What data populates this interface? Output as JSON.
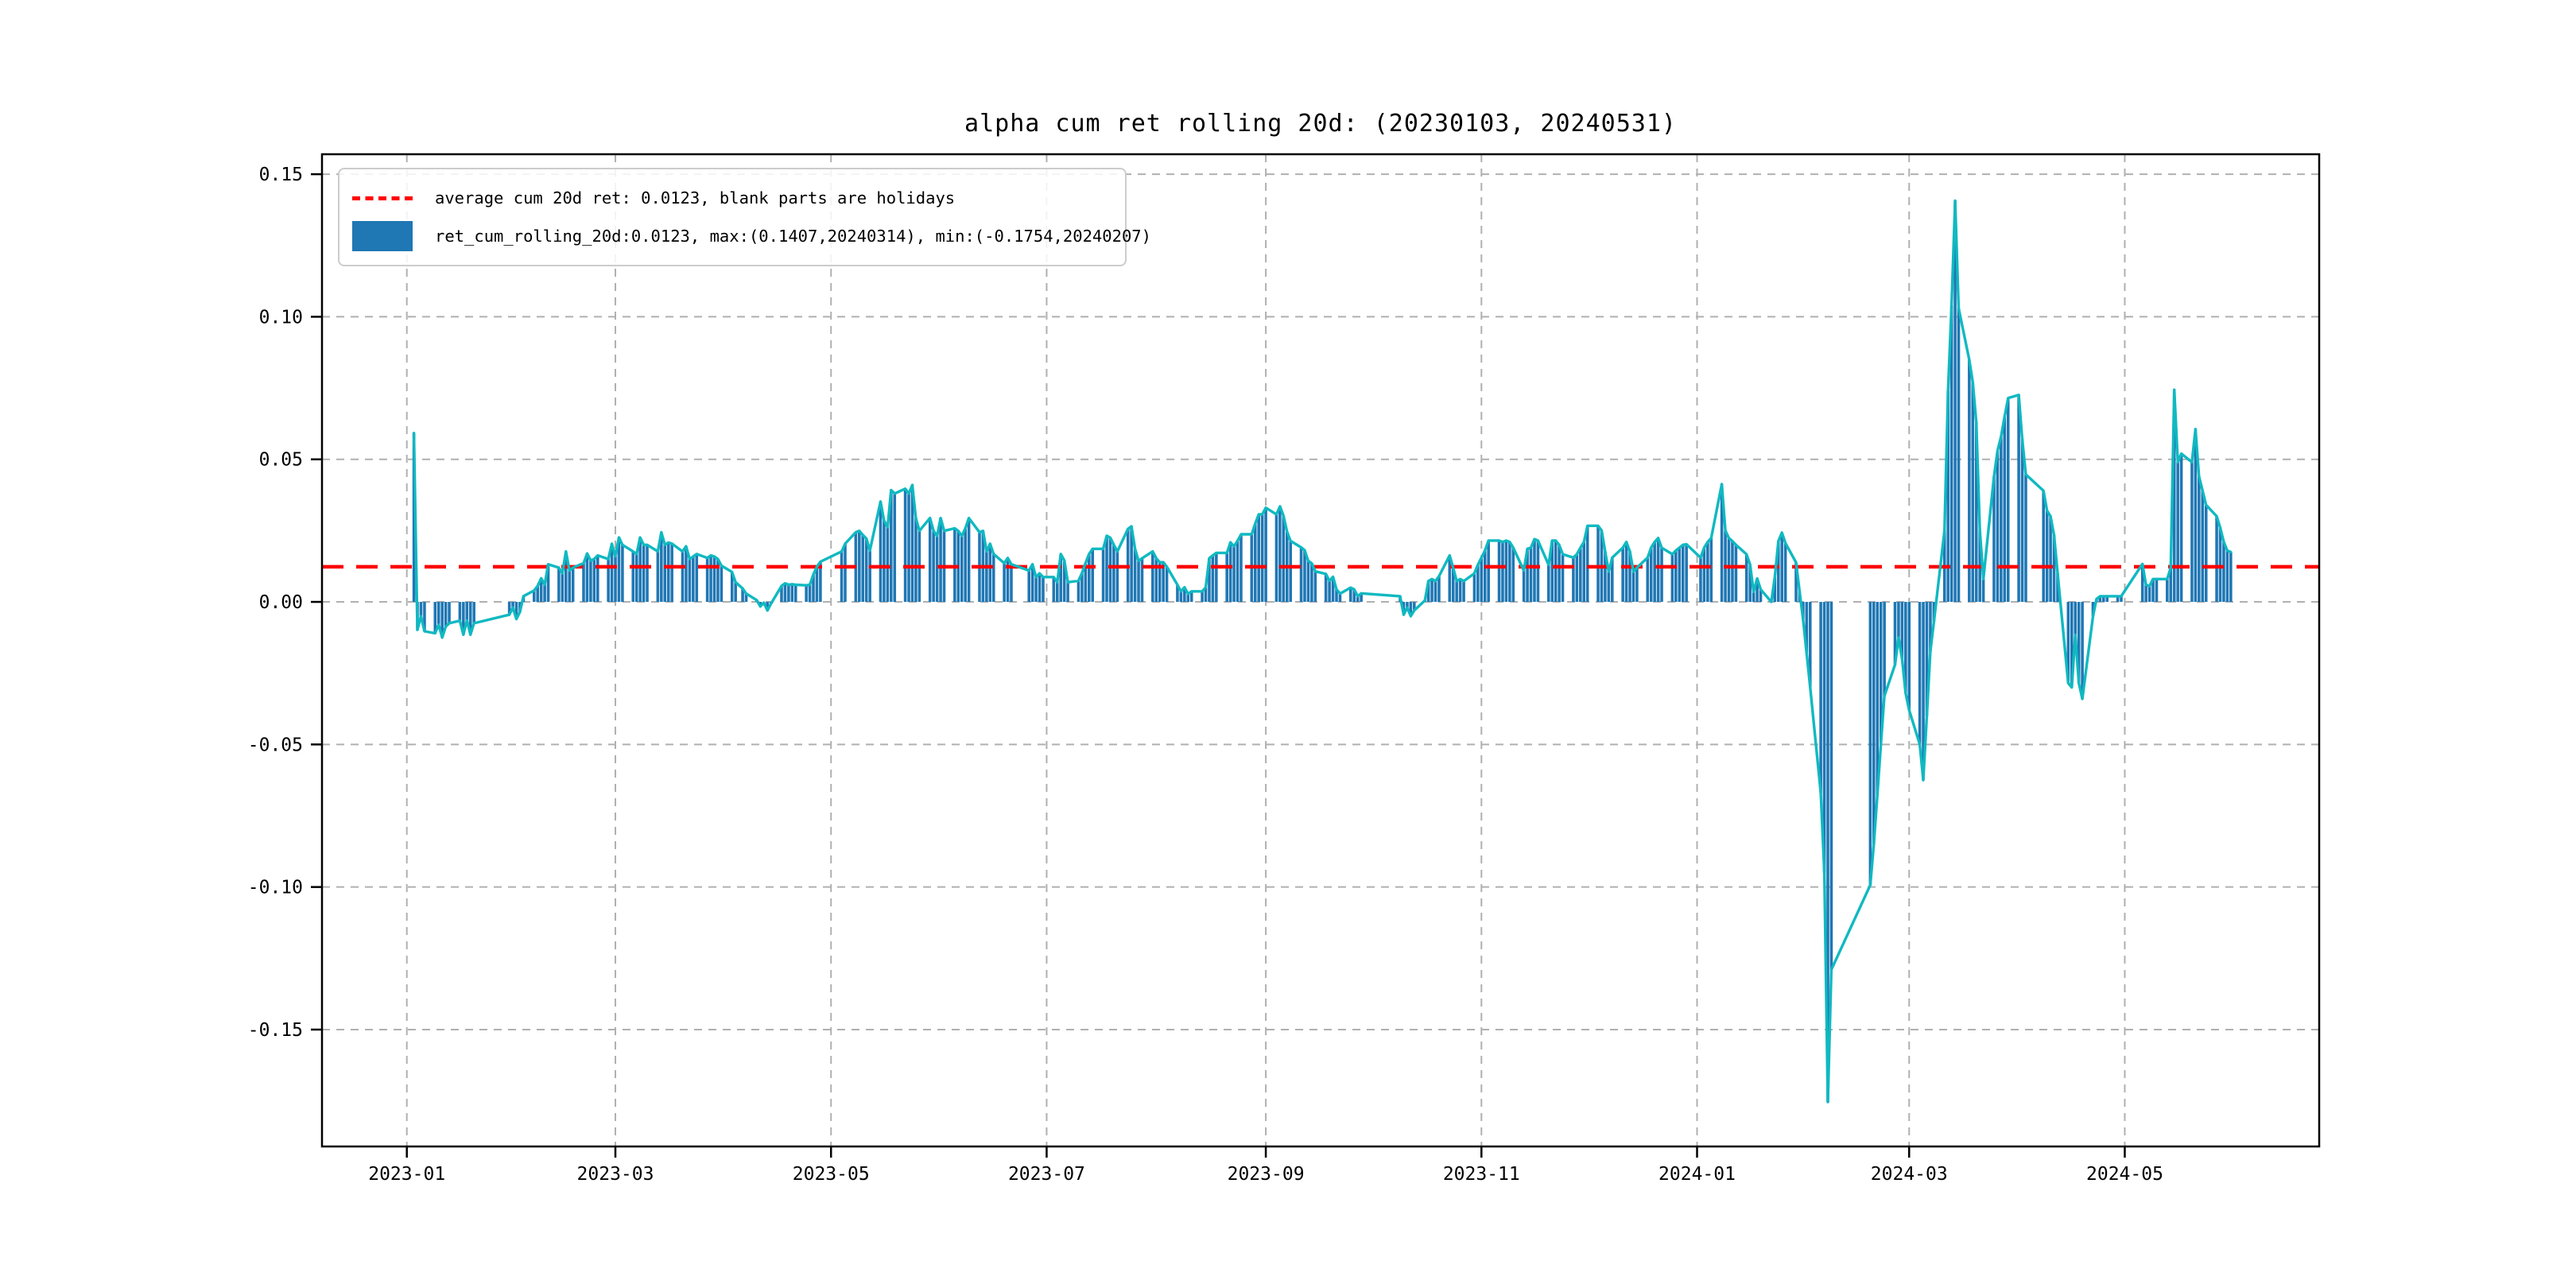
{
  "title": "alpha cum ret rolling 20d: (20230103, 20240531)",
  "legend": {
    "avg_label": "average cum 20d ret: 0.0123, blank parts are holidays",
    "series_label": "ret_cum_rolling_20d:0.0123, max:(0.1407,20240314), min:(-0.1754,20240207)"
  },
  "colors": {
    "bar": "#1f77b4",
    "line": "#10b9c1",
    "average": "#ff0000",
    "grid": "#b0b0b0",
    "spine": "#000000",
    "background": "#ffffff"
  },
  "chart_data": {
    "type": "bar",
    "title": "alpha cum ret rolling 20d: (20230103, 20240531)",
    "series_name": "ret_cum_rolling_20d",
    "average_line": 0.0123,
    "max_point": {
      "value": 0.1407,
      "date": "20240314"
    },
    "min_point": {
      "value": -0.1754,
      "date": "20240207"
    },
    "grid": true,
    "legend_position": "upper left",
    "ylim": [
      -0.191,
      0.157
    ],
    "xlim": [
      "2022-12-08",
      "2024-06-25"
    ],
    "y_ticks": [
      0.15,
      0.1,
      0.05,
      0.0,
      -0.05,
      -0.1,
      -0.15
    ],
    "x_ticks": [
      {
        "label": "2023-01",
        "date": "2023-01-01"
      },
      {
        "label": "2023-03",
        "date": "2023-03-01"
      },
      {
        "label": "2023-05",
        "date": "2023-05-01"
      },
      {
        "label": "2023-07",
        "date": "2023-07-01"
      },
      {
        "label": "2023-09",
        "date": "2023-09-01"
      },
      {
        "label": "2023-11",
        "date": "2023-11-01"
      },
      {
        "label": "2024-01",
        "date": "2024-01-01"
      },
      {
        "label": "2024-03",
        "date": "2024-03-01"
      },
      {
        "label": "2024-05",
        "date": "2024-05-01"
      }
    ],
    "points": [
      [
        "2023-01-03",
        0.0592
      ],
      [
        "2023-01-04",
        -0.0098
      ],
      [
        "2023-01-05",
        -0.005
      ],
      [
        "2023-01-06",
        -0.0103
      ],
      [
        "2023-01-09",
        -0.011
      ],
      [
        "2023-01-10",
        -0.008
      ],
      [
        "2023-01-11",
        -0.0125
      ],
      [
        "2023-01-12",
        -0.0087
      ],
      [
        "2023-01-13",
        -0.0075
      ],
      [
        "2023-01-16",
        -0.0066
      ],
      [
        "2023-01-17",
        -0.0115
      ],
      [
        "2023-01-18",
        -0.0065
      ],
      [
        "2023-01-19",
        -0.0115
      ],
      [
        "2023-01-20",
        -0.0075
      ],
      [
        "2023-01-30",
        -0.0045
      ],
      [
        "2023-01-31",
        -0.002
      ],
      [
        "2023-02-01",
        -0.006
      ],
      [
        "2023-02-02",
        -0.0035
      ],
      [
        "2023-02-03",
        0.002
      ],
      [
        "2023-02-06",
        0.004
      ],
      [
        "2023-02-07",
        0.0056
      ],
      [
        "2023-02-08",
        0.0083
      ],
      [
        "2023-02-09",
        0.006
      ],
      [
        "2023-02-10",
        0.0132
      ],
      [
        "2023-02-13",
        0.012
      ],
      [
        "2023-02-14",
        0.01
      ],
      [
        "2023-02-15",
        0.0177
      ],
      [
        "2023-02-16",
        0.011
      ],
      [
        "2023-02-17",
        0.012
      ],
      [
        "2023-02-20",
        0.0136
      ],
      [
        "2023-02-21",
        0.017
      ],
      [
        "2023-02-22",
        0.0145
      ],
      [
        "2023-02-23",
        0.015
      ],
      [
        "2023-02-24",
        0.0163
      ],
      [
        "2023-02-27",
        0.015
      ],
      [
        "2023-02-28",
        0.0204
      ],
      [
        "2023-03-01",
        0.016
      ],
      [
        "2023-03-02",
        0.0226
      ],
      [
        "2023-03-03",
        0.02
      ],
      [
        "2023-03-06",
        0.0177
      ],
      [
        "2023-03-07",
        0.0168
      ],
      [
        "2023-03-08",
        0.0226
      ],
      [
        "2023-03-09",
        0.02
      ],
      [
        "2023-03-10",
        0.02
      ],
      [
        "2023-03-13",
        0.0177
      ],
      [
        "2023-03-14",
        0.0244
      ],
      [
        "2023-03-15",
        0.02
      ],
      [
        "2023-03-16",
        0.0208
      ],
      [
        "2023-03-17",
        0.0204
      ],
      [
        "2023-03-20",
        0.0177
      ],
      [
        "2023-03-21",
        0.0195
      ],
      [
        "2023-03-22",
        0.015
      ],
      [
        "2023-03-23",
        0.0159
      ],
      [
        "2023-03-24",
        0.0168
      ],
      [
        "2023-03-27",
        0.0154
      ],
      [
        "2023-03-28",
        0.0163
      ],
      [
        "2023-03-29",
        0.0159
      ],
      [
        "2023-03-30",
        0.015
      ],
      [
        "2023-03-31",
        0.0127
      ],
      [
        "2023-04-03",
        0.0105
      ],
      [
        "2023-04-04",
        0.0069
      ],
      [
        "2023-04-06",
        0.0047
      ],
      [
        "2023-04-07",
        0.0029
      ],
      [
        "2023-04-10",
        0.0006
      ],
      [
        "2023-04-11",
        -0.0016
      ],
      [
        "2023-04-12",
        -0.0003
      ],
      [
        "2023-04-13",
        -0.003
      ],
      [
        "2023-04-14",
        -0.0007
      ],
      [
        "2023-04-17",
        0.0056
      ],
      [
        "2023-04-18",
        0.0065
      ],
      [
        "2023-04-19",
        0.006
      ],
      [
        "2023-04-20",
        0.0062
      ],
      [
        "2023-04-21",
        0.006
      ],
      [
        "2023-04-24",
        0.0058
      ],
      [
        "2023-04-25",
        0.006
      ],
      [
        "2023-04-26",
        0.0096
      ],
      [
        "2023-04-27",
        0.0123
      ],
      [
        "2023-04-28",
        0.0141
      ],
      [
        "2023-05-04",
        0.0177
      ],
      [
        "2023-05-05",
        0.0204
      ],
      [
        "2023-05-08",
        0.0244
      ],
      [
        "2023-05-09",
        0.0249
      ],
      [
        "2023-05-10",
        0.0235
      ],
      [
        "2023-05-11",
        0.0222
      ],
      [
        "2023-05-12",
        0.018
      ],
      [
        "2023-05-15",
        0.0352
      ],
      [
        "2023-05-16",
        0.0285
      ],
      [
        "2023-05-17",
        0.0262
      ],
      [
        "2023-05-18",
        0.0392
      ],
      [
        "2023-05-19",
        0.038
      ],
      [
        "2023-05-22",
        0.0397
      ],
      [
        "2023-05-23",
        0.038
      ],
      [
        "2023-05-24",
        0.041
      ],
      [
        "2023-05-25",
        0.0294
      ],
      [
        "2023-05-26",
        0.0249
      ],
      [
        "2023-05-29",
        0.0294
      ],
      [
        "2023-05-30",
        0.0249
      ],
      [
        "2023-05-31",
        0.0231
      ],
      [
        "2023-06-01",
        0.0294
      ],
      [
        "2023-06-02",
        0.0249
      ],
      [
        "2023-06-05",
        0.0258
      ],
      [
        "2023-06-06",
        0.0249
      ],
      [
        "2023-06-07",
        0.0231
      ],
      [
        "2023-06-08",
        0.0258
      ],
      [
        "2023-06-09",
        0.0294
      ],
      [
        "2023-06-12",
        0.0244
      ],
      [
        "2023-06-13",
        0.0249
      ],
      [
        "2023-06-14",
        0.0177
      ],
      [
        "2023-06-15",
        0.0204
      ],
      [
        "2023-06-16",
        0.0168
      ],
      [
        "2023-06-19",
        0.0136
      ],
      [
        "2023-06-20",
        0.0154
      ],
      [
        "2023-06-21",
        0.0132
      ],
      [
        "2023-06-26",
        0.011
      ],
      [
        "2023-06-27",
        0.0132
      ],
      [
        "2023-06-28",
        0.0087
      ],
      [
        "2023-06-29",
        0.01
      ],
      [
        "2023-06-30",
        0.0087
      ],
      [
        "2023-07-03",
        0.0087
      ],
      [
        "2023-07-04",
        0.0069
      ],
      [
        "2023-07-05",
        0.0168
      ],
      [
        "2023-07-06",
        0.0145
      ],
      [
        "2023-07-07",
        0.0069
      ],
      [
        "2023-07-10",
        0.0074
      ],
      [
        "2023-07-11",
        0.0101
      ],
      [
        "2023-07-12",
        0.0136
      ],
      [
        "2023-07-13",
        0.0168
      ],
      [
        "2023-07-14",
        0.0186
      ],
      [
        "2023-07-17",
        0.0186
      ],
      [
        "2023-07-18",
        0.0232
      ],
      [
        "2023-07-19",
        0.0225
      ],
      [
        "2023-07-20",
        0.02
      ],
      [
        "2023-07-21",
        0.0177
      ],
      [
        "2023-07-24",
        0.0256
      ],
      [
        "2023-07-25",
        0.0265
      ],
      [
        "2023-07-26",
        0.0186
      ],
      [
        "2023-07-27",
        0.0144
      ],
      [
        "2023-07-28",
        0.0153
      ],
      [
        "2023-07-31",
        0.0177
      ],
      [
        "2023-08-01",
        0.0153
      ],
      [
        "2023-08-02",
        0.0139
      ],
      [
        "2023-08-03",
        0.0139
      ],
      [
        "2023-08-04",
        0.0123
      ],
      [
        "2023-08-07",
        0.006
      ],
      [
        "2023-08-08",
        0.0037
      ],
      [
        "2023-08-09",
        0.0051
      ],
      [
        "2023-08-10",
        0.0028
      ],
      [
        "2023-08-11",
        0.0037
      ],
      [
        "2023-08-14",
        0.0037
      ],
      [
        "2023-08-15",
        0.0051
      ],
      [
        "2023-08-16",
        0.0153
      ],
      [
        "2023-08-17",
        0.0163
      ],
      [
        "2023-08-18",
        0.0172
      ],
      [
        "2023-08-21",
        0.0172
      ],
      [
        "2023-08-22",
        0.0209
      ],
      [
        "2023-08-23",
        0.0195
      ],
      [
        "2023-08-24",
        0.0214
      ],
      [
        "2023-08-25",
        0.0237
      ],
      [
        "2023-08-28",
        0.0237
      ],
      [
        "2023-08-29",
        0.0274
      ],
      [
        "2023-08-30",
        0.0307
      ],
      [
        "2023-08-31",
        0.0307
      ],
      [
        "2023-09-01",
        0.033
      ],
      [
        "2023-09-04",
        0.0307
      ],
      [
        "2023-09-05",
        0.0335
      ],
      [
        "2023-09-06",
        0.0302
      ],
      [
        "2023-09-07",
        0.0246
      ],
      [
        "2023-09-08",
        0.0214
      ],
      [
        "2023-09-11",
        0.0191
      ],
      [
        "2023-09-12",
        0.0181
      ],
      [
        "2023-09-13",
        0.0144
      ],
      [
        "2023-09-14",
        0.0135
      ],
      [
        "2023-09-15",
        0.0107
      ],
      [
        "2023-09-18",
        0.0098
      ],
      [
        "2023-09-19",
        0.0074
      ],
      [
        "2023-09-20",
        0.0088
      ],
      [
        "2023-09-21",
        0.0044
      ],
      [
        "2023-09-22",
        0.0029
      ],
      [
        "2023-09-25",
        0.005
      ],
      [
        "2023-09-26",
        0.0044
      ],
      [
        "2023-09-27",
        0.002
      ],
      [
        "2023-09-28",
        0.003
      ],
      [
        "2023-10-09",
        0.002
      ],
      [
        "2023-10-10",
        -0.0045
      ],
      [
        "2023-10-11",
        -0.002
      ],
      [
        "2023-10-12",
        -0.005
      ],
      [
        "2023-10-13",
        -0.003
      ],
      [
        "2023-10-16",
        0.0005
      ],
      [
        "2023-10-17",
        0.0073
      ],
      [
        "2023-10-18",
        0.008
      ],
      [
        "2023-10-19",
        0.0073
      ],
      [
        "2023-10-20",
        0.009
      ],
      [
        "2023-10-23",
        0.0163
      ],
      [
        "2023-10-24",
        0.012
      ],
      [
        "2023-10-25",
        0.0073
      ],
      [
        "2023-10-26",
        0.008
      ],
      [
        "2023-10-27",
        0.0073
      ],
      [
        "2023-10-30",
        0.01
      ],
      [
        "2023-10-31",
        0.013
      ],
      [
        "2023-11-01",
        0.0155
      ],
      [
        "2023-11-02",
        0.018
      ],
      [
        "2023-11-03",
        0.0215
      ],
      [
        "2023-11-06",
        0.0215
      ],
      [
        "2023-11-07",
        0.021
      ],
      [
        "2023-11-08",
        0.0215
      ],
      [
        "2023-11-09",
        0.021
      ],
      [
        "2023-11-10",
        0.019
      ],
      [
        "2023-11-13",
        0.011
      ],
      [
        "2023-11-14",
        0.0186
      ],
      [
        "2023-11-15",
        0.019
      ],
      [
        "2023-11-16",
        0.022
      ],
      [
        "2023-11-17",
        0.0215
      ],
      [
        "2023-11-20",
        0.013
      ],
      [
        "2023-11-21",
        0.0215
      ],
      [
        "2023-11-22",
        0.0215
      ],
      [
        "2023-11-23",
        0.02
      ],
      [
        "2023-11-24",
        0.0167
      ],
      [
        "2023-11-27",
        0.0155
      ],
      [
        "2023-11-28",
        0.0167
      ],
      [
        "2023-11-29",
        0.019
      ],
      [
        "2023-11-30",
        0.021
      ],
      [
        "2023-12-01",
        0.0267
      ],
      [
        "2023-12-04",
        0.0267
      ],
      [
        "2023-12-05",
        0.025
      ],
      [
        "2023-12-06",
        0.0177
      ],
      [
        "2023-12-07",
        0.0106
      ],
      [
        "2023-12-08",
        0.0155
      ],
      [
        "2023-12-11",
        0.019
      ],
      [
        "2023-12-12",
        0.021
      ],
      [
        "2023-12-13",
        0.0177
      ],
      [
        "2023-12-14",
        0.0106
      ],
      [
        "2023-12-15",
        0.012
      ],
      [
        "2023-12-18",
        0.0155
      ],
      [
        "2023-12-19",
        0.019
      ],
      [
        "2023-12-20",
        0.021
      ],
      [
        "2023-12-21",
        0.0224
      ],
      [
        "2023-12-22",
        0.019
      ],
      [
        "2023-12-25",
        0.0167
      ],
      [
        "2023-12-26",
        0.018
      ],
      [
        "2023-12-27",
        0.019
      ],
      [
        "2023-12-28",
        0.02
      ],
      [
        "2023-12-29",
        0.0202
      ],
      [
        "2024-01-02",
        0.0155
      ],
      [
        "2024-01-03",
        0.019
      ],
      [
        "2024-01-04",
        0.021
      ],
      [
        "2024-01-05",
        0.0224
      ],
      [
        "2024-01-08",
        0.0413
      ],
      [
        "2024-01-09",
        0.025
      ],
      [
        "2024-01-10",
        0.0224
      ],
      [
        "2024-01-11",
        0.0213
      ],
      [
        "2024-01-12",
        0.02
      ],
      [
        "2024-01-15",
        0.0167
      ],
      [
        "2024-01-16",
        0.0131
      ],
      [
        "2024-01-17",
        0.0035
      ],
      [
        "2024-01-18",
        0.0082
      ],
      [
        "2024-01-19",
        0.0044
      ],
      [
        "2024-01-22",
        0.0
      ],
      [
        "2024-01-23",
        0.0087
      ],
      [
        "2024-01-24",
        0.0213
      ],
      [
        "2024-01-25",
        0.0243
      ],
      [
        "2024-01-26",
        0.0206
      ],
      [
        "2024-01-29",
        0.0138
      ],
      [
        "2024-01-30",
        0.0038
      ],
      [
        "2024-01-31",
        -0.0063
      ],
      [
        "2024-02-01",
        -0.018
      ],
      [
        "2024-02-02",
        -0.03
      ],
      [
        "2024-02-05",
        -0.067
      ],
      [
        "2024-02-06",
        -0.095
      ],
      [
        "2024-02-07",
        -0.1754
      ],
      [
        "2024-02-08",
        -0.129
      ],
      [
        "2024-02-19",
        -0.0993
      ],
      [
        "2024-02-20",
        -0.085
      ],
      [
        "2024-02-21",
        -0.068
      ],
      [
        "2024-02-22",
        -0.05
      ],
      [
        "2024-02-23",
        -0.033
      ],
      [
        "2024-02-26",
        -0.022
      ],
      [
        "2024-02-27",
        -0.0125
      ],
      [
        "2024-02-28",
        -0.02
      ],
      [
        "2024-02-29",
        -0.032
      ],
      [
        "2024-03-01",
        -0.038
      ],
      [
        "2024-03-04",
        -0.05
      ],
      [
        "2024-03-05",
        -0.0625
      ],
      [
        "2024-03-06",
        -0.04
      ],
      [
        "2024-03-07",
        -0.0174
      ],
      [
        "2024-03-08",
        -0.007
      ],
      [
        "2024-03-11",
        0.025
      ],
      [
        "2024-03-12",
        0.074
      ],
      [
        "2024-03-13",
        0.104
      ],
      [
        "2024-03-14",
        0.1407
      ],
      [
        "2024-03-15",
        0.103
      ],
      [
        "2024-03-18",
        0.085
      ],
      [
        "2024-03-19",
        0.077
      ],
      [
        "2024-03-20",
        0.063
      ],
      [
        "2024-03-21",
        0.025
      ],
      [
        "2024-03-22",
        0.008
      ],
      [
        "2024-03-25",
        0.044
      ],
      [
        "2024-03-26",
        0.053
      ],
      [
        "2024-03-27",
        0.058
      ],
      [
        "2024-03-28",
        0.065
      ],
      [
        "2024-03-29",
        0.0715
      ],
      [
        "2024-04-01",
        0.0726
      ],
      [
        "2024-04-02",
        0.057
      ],
      [
        "2024-04-03",
        0.0447
      ],
      [
        "2024-04-08",
        0.039
      ],
      [
        "2024-04-09",
        0.032
      ],
      [
        "2024-04-10",
        0.03
      ],
      [
        "2024-04-11",
        0.0234
      ],
      [
        "2024-04-12",
        0.01
      ],
      [
        "2024-04-15",
        -0.0285
      ],
      [
        "2024-04-16",
        -0.03
      ],
      [
        "2024-04-17",
        -0.0115
      ],
      [
        "2024-04-18",
        -0.0285
      ],
      [
        "2024-04-19",
        -0.034
      ],
      [
        "2024-04-22",
        -0.005
      ],
      [
        "2024-04-23",
        0.001
      ],
      [
        "2024-04-24",
        0.002
      ],
      [
        "2024-04-25",
        0.002
      ],
      [
        "2024-04-26",
        0.002
      ],
      [
        "2024-04-29",
        0.002
      ],
      [
        "2024-04-30",
        0.002
      ],
      [
        "2024-05-06",
        0.0133
      ],
      [
        "2024-05-07",
        0.006
      ],
      [
        "2024-05-08",
        0.0055
      ],
      [
        "2024-05-09",
        0.008
      ],
      [
        "2024-05-10",
        0.008
      ],
      [
        "2024-05-13",
        0.008
      ],
      [
        "2024-05-14",
        0.012
      ],
      [
        "2024-05-15",
        0.0744
      ],
      [
        "2024-05-16",
        0.049
      ],
      [
        "2024-05-17",
        0.052
      ],
      [
        "2024-05-20",
        0.049
      ],
      [
        "2024-05-21",
        0.0606
      ],
      [
        "2024-05-22",
        0.044
      ],
      [
        "2024-05-23",
        0.039
      ],
      [
        "2024-05-24",
        0.034
      ],
      [
        "2024-05-27",
        0.03
      ],
      [
        "2024-05-28",
        0.026
      ],
      [
        "2024-05-29",
        0.021
      ],
      [
        "2024-05-30",
        0.018
      ],
      [
        "2024-05-31",
        0.0175
      ]
    ]
  }
}
